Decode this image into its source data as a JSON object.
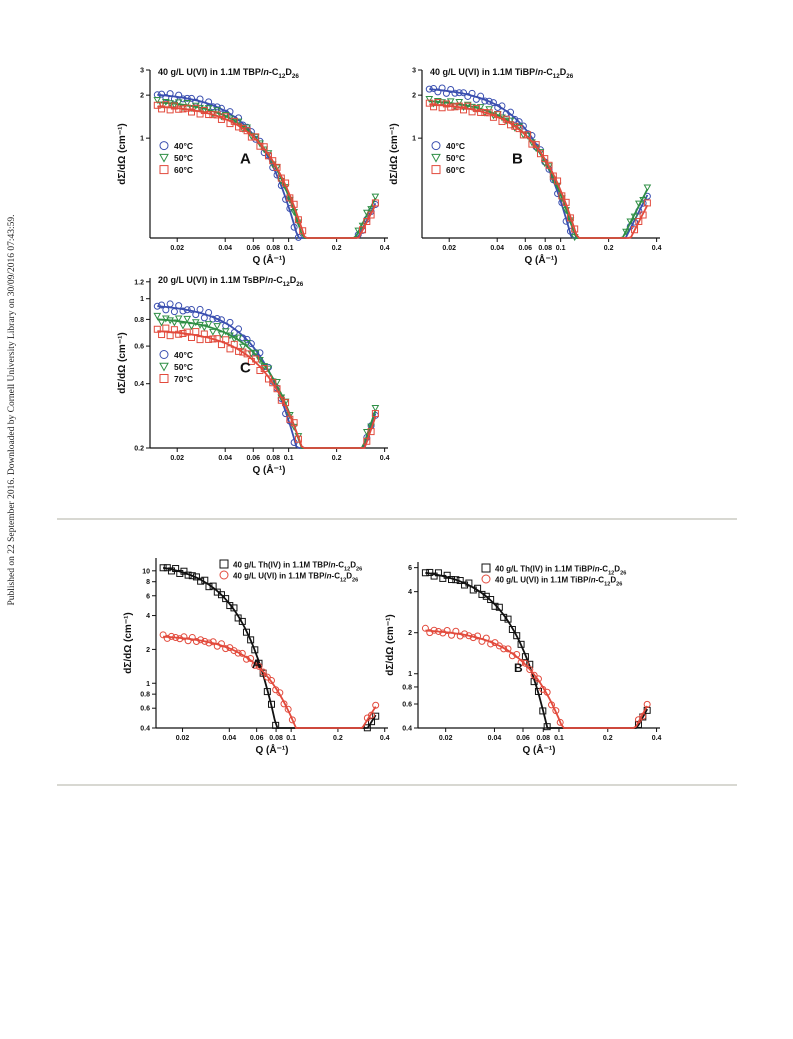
{
  "side_note": "Published on 22 September 2016. Downloaded by Cornell University Library on 30/09/2016 07:43:59.",
  "chart_data": [
    {
      "type": "scatter",
      "panel_letter": "A",
      "title": "40 g/L U(VI) in 1.1M TBP/n-C12D26",
      "xlabel": "Q (Å⁻¹)",
      "ylabel": "dΣ/dΩ (cm⁻¹)",
      "xscale": "log",
      "yscale": "log",
      "xlim": [
        0.0135,
        0.42
      ],
      "ylim": [
        0.2,
        3.0
      ],
      "xticks": [
        0.02,
        0.04,
        0.06,
        0.08,
        0.1,
        0.2,
        0.4
      ],
      "xtick_labels": [
        "0.02",
        "0.04",
        "0.06",
        "0.08",
        "0.1",
        "0.2",
        "0.4"
      ],
      "yticks": [
        1,
        2,
        3
      ],
      "ytick_labels": [
        "1",
        "2",
        "3"
      ],
      "legend_placement": "left",
      "series": [
        {
          "name": "40°C",
          "marker": "circle",
          "color": "#3a4fb0",
          "plateau": 2.1,
          "rg": 24,
          "end": 0.35
        },
        {
          "name": "50°C",
          "marker": "triangle-down",
          "color": "#2f8f45",
          "plateau": 1.85,
          "rg": 22,
          "end": 0.38
        },
        {
          "name": "60°C",
          "marker": "square",
          "color": "#e24a3c",
          "plateau": 1.72,
          "rg": 21,
          "end": 0.34
        }
      ]
    },
    {
      "type": "scatter",
      "panel_letter": "B",
      "title": "40 g/L U(VI) in 1.1M TiBP/n-C12D26",
      "xlabel": "Q (Å⁻¹)",
      "ylabel": "dΣ/dΩ (cm⁻¹)",
      "xscale": "log",
      "yscale": "log",
      "xlim": [
        0.0135,
        0.42
      ],
      "ylim": [
        0.2,
        3.0
      ],
      "xticks": [
        0.02,
        0.04,
        0.06,
        0.08,
        0.1,
        0.2,
        0.4
      ],
      "xtick_labels": [
        "0.02",
        "0.04",
        "0.06",
        "0.08",
        "0.1",
        "0.2",
        "0.4"
      ],
      "yticks": [
        1,
        2,
        3
      ],
      "ytick_labels": [
        "1",
        "2",
        "3"
      ],
      "legend_placement": "left",
      "series": [
        {
          "name": "40°C",
          "marker": "circle",
          "color": "#3a4fb0",
          "plateau": 2.3,
          "rg": 24,
          "end": 0.4
        },
        {
          "name": "50°C",
          "marker": "triangle-down",
          "color": "#2f8f45",
          "plateau": 1.88,
          "rg": 22,
          "end": 0.44
        },
        {
          "name": "60°C",
          "marker": "square",
          "color": "#e24a3c",
          "plateau": 1.78,
          "rg": 21,
          "end": 0.34
        }
      ]
    },
    {
      "type": "scatter",
      "panel_letter": "C",
      "title": "20 g/L U(VI) in 1.1M TsBP/n-C12D26",
      "xlabel": "Q (Å⁻¹)",
      "ylabel": "dΣ/dΩ (cm⁻¹)",
      "xscale": "log",
      "yscale": "log",
      "xlim": [
        0.0135,
        0.42
      ],
      "ylim": [
        0.2,
        1.25
      ],
      "xticks": [
        0.02,
        0.04,
        0.06,
        0.08,
        0.1,
        0.2,
        0.4
      ],
      "xtick_labels": [
        "0.02",
        "0.04",
        "0.06",
        "0.08",
        "0.1",
        "0.2",
        "0.4"
      ],
      "yticks": [
        0.2,
        0.4,
        0.6,
        0.8,
        1,
        1.2
      ],
      "ytick_labels": [
        "0.2",
        "0.4",
        "0.6",
        "0.8",
        "1",
        "1.2"
      ],
      "legend_placement": "left",
      "series": [
        {
          "name": "40°C",
          "marker": "circle",
          "color": "#3a4fb0",
          "plateau": 0.95,
          "rg": 20,
          "end": 0.29
        },
        {
          "name": "50°C",
          "marker": "triangle-down",
          "color": "#2f8f45",
          "plateau": 0.82,
          "rg": 18,
          "end": 0.3
        },
        {
          "name": "70°C",
          "marker": "square",
          "color": "#e24a3c",
          "plateau": 0.72,
          "rg": 17,
          "end": 0.28
        }
      ]
    },
    {
      "type": "scatter",
      "panel_letter": "A",
      "xlabel": "Q (Å⁻¹)",
      "ylabel": "dΣ/dΩ (cm⁻¹)",
      "xscale": "log",
      "yscale": "log",
      "xlim": [
        0.0135,
        0.42
      ],
      "ylim": [
        0.4,
        13
      ],
      "xticks": [
        0.02,
        0.04,
        0.06,
        0.08,
        0.1,
        0.2,
        0.4
      ],
      "xtick_labels": [
        "0.02",
        "0.04",
        "0.06",
        "0.08",
        "0.1",
        "0.2",
        "0.4"
      ],
      "yticks": [
        0.4,
        0.6,
        0.8,
        1,
        2,
        4,
        6,
        8,
        10
      ],
      "ytick_labels": [
        "0.4",
        "0.6",
        "0.8",
        "1",
        "2",
        "4",
        "6",
        "8",
        "10"
      ],
      "legend_placement": "top-right",
      "series": [
        {
          "name": "40 g/L Th(IV) in 1.1M TBP/n-C12D26",
          "marker": "square",
          "color": "#111111",
          "plateau": 12.0,
          "rg": 40,
          "end": 0.52
        },
        {
          "name": "40 g/L U(VI) in 1.1M TBP/n-C12D26",
          "marker": "circle",
          "color": "#e24a3c",
          "plateau": 2.7,
          "rg": 23,
          "end": 0.62
        }
      ]
    },
    {
      "type": "scatter",
      "panel_letter": "B",
      "xlabel": "Q (Å⁻¹)",
      "ylabel": "dΣ/dΩ (cm⁻¹)",
      "xscale": "log",
      "yscale": "log",
      "xlim": [
        0.0135,
        0.42
      ],
      "ylim": [
        0.4,
        6.6
      ],
      "xticks": [
        0.02,
        0.04,
        0.06,
        0.08,
        0.1,
        0.2,
        0.4
      ],
      "xtick_labels": [
        "0.02",
        "0.04",
        "0.06",
        "0.08",
        "0.1",
        "0.2",
        "0.4"
      ],
      "yticks": [
        0.4,
        0.6,
        0.8,
        1,
        2,
        4,
        6
      ],
      "ytick_labels": [
        "0.4",
        "0.6",
        "0.8",
        "1",
        "2",
        "4",
        "6"
      ],
      "legend_placement": "top-right",
      "series": [
        {
          "name": "40 g/L Th(IV) in 1.1M TiBP/n-C12D26",
          "marker": "square",
          "color": "#111111",
          "plateau": 6.0,
          "rg": 34,
          "end": 0.55
        },
        {
          "name": "40 g/L U(VI) in 1.1M TiBP/n-C12D26",
          "marker": "circle",
          "color": "#e24a3c",
          "plateau": 2.15,
          "rg": 22,
          "end": 0.58
        }
      ]
    }
  ]
}
